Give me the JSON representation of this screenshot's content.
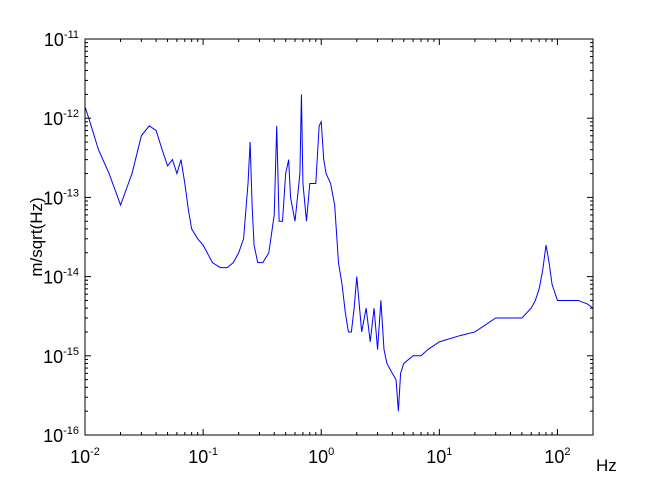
{
  "chart_data": {
    "type": "line",
    "title": "",
    "xlabel": "Hz",
    "ylabel": "m/sqrt(Hz)",
    "xscale": "log",
    "yscale": "log",
    "xlim": [
      0.01,
      200
    ],
    "ylim": [
      1e-16,
      1e-11
    ],
    "grid": false,
    "legend": "none",
    "x_ticks": [
      {
        "value": 0.01,
        "base": "10",
        "exp": "-2"
      },
      {
        "value": 0.1,
        "base": "10",
        "exp": "-1"
      },
      {
        "value": 1,
        "base": "10",
        "exp": "0"
      },
      {
        "value": 10,
        "base": "10",
        "exp": "1"
      },
      {
        "value": 100,
        "base": "10",
        "exp": "2"
      }
    ],
    "y_ticks": [
      {
        "value": 1e-16,
        "base": "10",
        "exp": "-16"
      },
      {
        "value": 1e-15,
        "base": "10",
        "exp": "-15"
      },
      {
        "value": 1e-14,
        "base": "10",
        "exp": "-14"
      },
      {
        "value": 1e-13,
        "base": "10",
        "exp": "-13"
      },
      {
        "value": 1e-12,
        "base": "10",
        "exp": "-12"
      },
      {
        "value": 1e-11,
        "base": "10",
        "exp": "-11"
      }
    ],
    "series": [
      {
        "color": "#0000ff",
        "x": [
          0.01,
          0.011,
          0.013,
          0.016,
          0.02,
          0.025,
          0.03,
          0.035,
          0.04,
          0.045,
          0.05,
          0.055,
          0.06,
          0.065,
          0.07,
          0.075,
          0.08,
          0.09,
          0.1,
          0.12,
          0.14,
          0.16,
          0.18,
          0.2,
          0.22,
          0.24,
          0.25,
          0.26,
          0.27,
          0.29,
          0.32,
          0.36,
          0.4,
          0.42,
          0.44,
          0.47,
          0.5,
          0.53,
          0.55,
          0.6,
          0.66,
          0.68,
          0.7,
          0.75,
          0.8,
          0.9,
          0.96,
          1.0,
          1.05,
          1.1,
          1.2,
          1.3,
          1.4,
          1.5,
          1.6,
          1.7,
          1.8,
          1.9,
          2.0,
          2.2,
          2.4,
          2.6,
          2.8,
          3.0,
          3.2,
          3.4,
          3.6,
          4.0,
          4.3,
          4.5,
          4.7,
          5.0,
          6.0,
          7.0,
          8.0,
          10,
          15,
          20,
          30,
          40,
          50,
          60,
          65,
          70,
          75,
          80,
          85,
          90,
          100,
          120,
          150,
          180,
          200
        ],
        "y": [
          1.4e-12,
          9e-13,
          4e-13,
          2e-13,
          8e-14,
          2e-13,
          6e-13,
          8e-13,
          7e-13,
          4e-13,
          2.5e-13,
          3e-13,
          2e-13,
          3e-13,
          1.5e-13,
          7e-14,
          4e-14,
          3e-14,
          2.5e-14,
          1.5e-14,
          1.3e-14,
          1.3e-14,
          1.5e-14,
          2e-14,
          3e-14,
          1.5e-13,
          5e-13,
          8e-14,
          2.5e-14,
          1.5e-14,
          1.5e-14,
          2e-14,
          6e-14,
          8e-13,
          5e-14,
          5e-14,
          2e-13,
          3e-13,
          1e-13,
          5e-14,
          2e-13,
          2e-12,
          1.5e-13,
          5e-14,
          1.5e-13,
          1.5e-13,
          8e-13,
          9e-13,
          3e-13,
          2e-13,
          1.5e-13,
          8e-14,
          1.5e-14,
          8e-15,
          3.5e-15,
          2e-15,
          2e-15,
          4e-15,
          1e-14,
          2e-15,
          4e-15,
          1.5e-15,
          4e-15,
          1.2e-15,
          5e-15,
          1.2e-15,
          8e-16,
          6e-16,
          5e-16,
          2e-16,
          6e-16,
          8e-16,
          1e-15,
          1e-15,
          1.2e-15,
          1.5e-15,
          1.8e-15,
          2e-15,
          3e-15,
          3e-15,
          3e-15,
          4e-15,
          5e-15,
          7e-15,
          1.2e-14,
          2.5e-14,
          1.5e-14,
          8e-15,
          5e-15,
          5e-15,
          5e-15,
          4.5e-15,
          4e-15
        ]
      }
    ]
  }
}
